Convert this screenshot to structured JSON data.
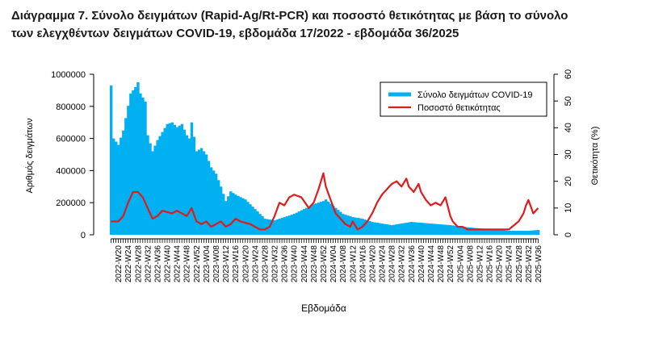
{
  "title_line1": "Διάγραμμα 7. Σύνολο δειγμάτων (Rapid-Ag/Rt-PCR) και ποσοστό θετικότητας με βάση το σύνολο",
  "title_line2": "των ελεγχθέντων δειγμάτων COVID-19, εβδομάδα 17/2022 - εβδομάδα 36/2025",
  "colors": {
    "bars": "#00b0f0",
    "line": "#e01b1b"
  },
  "chart_data": {
    "type": "bar",
    "title": "Διάγραμμα 7. Σύνολο δειγμάτων (Rapid-Ag/Rt-PCR) και ποσοστό θετικότητας με βάση το σύνολο των ελεγχθέντων δειγμάτων COVID-19, εβδομάδα 17/2022 - εβδομάδα 36/2025",
    "xlabel": "Εβδομάδα",
    "ylabel": "Αριθμός δειγμάτων",
    "y2label": "Θετικότητα (%)",
    "ylim": [
      0,
      1000000
    ],
    "y2lim": [
      0,
      60
    ],
    "yticks": [
      0,
      200000,
      400000,
      600000,
      800000,
      1000000
    ],
    "ytick_labels": [
      "0",
      "200000",
      "400000",
      "600000",
      "800000",
      "1000000"
    ],
    "y2ticks": [
      0,
      10,
      20,
      30,
      40,
      50,
      60
    ],
    "y2tick_labels": [
      "0",
      "10",
      "20",
      "30",
      "40",
      "50",
      "60"
    ],
    "xtick_labels": [
      "2022-W20",
      "2022-W24",
      "2022-W28",
      "2022-W32",
      "2022-W36",
      "2022-W40",
      "2022-W44",
      "2022-W48",
      "2022-W52",
      "2023-W04",
      "2023-W08",
      "2023-W12",
      "2023-W16",
      "2023-W20",
      "2023-W24",
      "2023-W28",
      "2023-W32",
      "2023-W36",
      "2023-W40",
      "2023-W44",
      "2023-W48",
      "2023-W52",
      "2024-W04",
      "2024-W08",
      "2024-W12",
      "2024-W16",
      "2024-W20",
      "2024-W24",
      "2024-W28",
      "2024-W32",
      "2024-W36",
      "2024-W40",
      "2024-W44",
      "2024-W48",
      "2024-W52",
      "2025-W04",
      "2025-W08",
      "2025-W12",
      "2025-W16",
      "2025-W20",
      "2025-W24",
      "2025-W28",
      "2025-W32",
      "2025-W36"
    ],
    "legend_position": "top-right",
    "grid": false,
    "series": [
      {
        "name": "Σύνολο δειγμάτων COVID-19",
        "type": "bar",
        "axis": "left",
        "anchor_weeks": [
          "2022-W17",
          "2022-W18",
          "2022-W20",
          "2022-W22",
          "2022-W25",
          "2022-W27",
          "2022-W28",
          "2022-W29",
          "2022-W31",
          "2022-W32",
          "2022-W34",
          "2022-W36",
          "2022-W38",
          "2022-W40",
          "2022-W42",
          "2022-W44",
          "2022-W46",
          "2022-W48",
          "2022-W49",
          "2022-W50",
          "2022-W52",
          "2023-W02",
          "2023-W04",
          "2023-W06",
          "2023-W08",
          "2023-W10",
          "2023-W12",
          "2023-W14",
          "2023-W16",
          "2023-W20",
          "2023-W24",
          "2023-W28",
          "2023-W32",
          "2023-W36",
          "2023-W40",
          "2023-W44",
          "2023-W48",
          "2023-W52",
          "2024-W01",
          "2024-W04",
          "2024-W08",
          "2024-W12",
          "2024-W16",
          "2024-W20",
          "2024-W28",
          "2024-W36",
          "2024-W44",
          "2024-W52",
          "2025-W08",
          "2025-W16",
          "2025-W24",
          "2025-W32",
          "2025-W36"
        ],
        "anchor_values": [
          930000,
          600000,
          560000,
          650000,
          880000,
          920000,
          950000,
          880000,
          830000,
          620000,
          520000,
          590000,
          640000,
          690000,
          700000,
          670000,
          690000,
          620000,
          600000,
          700000,
          520000,
          540000,
          500000,
          420000,
          380000,
          300000,
          210000,
          270000,
          250000,
          220000,
          160000,
          100000,
          90000,
          110000,
          130000,
          160000,
          190000,
          210000,
          220000,
          180000,
          130000,
          110000,
          100000,
          80000,
          60000,
          80000,
          70000,
          60000,
          45000,
          35000,
          25000,
          25000,
          30000
        ]
      },
      {
        "name": "Ποσοστό θετικότητας",
        "type": "line",
        "axis": "right",
        "anchor_weeks": [
          "2022-W17",
          "2022-W20",
          "2022-W22",
          "2022-W24",
          "2022-W26",
          "2022-W28",
          "2022-W30",
          "2022-W32",
          "2022-W34",
          "2022-W36",
          "2022-W38",
          "2022-W42",
          "2022-W44",
          "2022-W48",
          "2022-W50",
          "2022-W52",
          "2023-W02",
          "2023-W04",
          "2023-W06",
          "2023-W08",
          "2023-W10",
          "2023-W12",
          "2023-W14",
          "2023-W16",
          "2023-W18",
          "2023-W22",
          "2023-W26",
          "2023-W28",
          "2023-W30",
          "2023-W32",
          "2023-W34",
          "2023-W36",
          "2023-W38",
          "2023-W40",
          "2023-W43",
          "2023-W46",
          "2023-W48",
          "2023-W50",
          "2023-W52",
          "2024-W01",
          "2024-W03",
          "2024-W05",
          "2024-W07",
          "2024-W09",
          "2024-W11",
          "2024-W12",
          "2024-W14",
          "2024-W16",
          "2024-W18",
          "2024-W20",
          "2024-W22",
          "2024-W24",
          "2024-W26",
          "2024-W28",
          "2024-W30",
          "2024-W32",
          "2024-W34",
          "2024-W35",
          "2024-W37",
          "2024-W39",
          "2024-W40",
          "2024-W42",
          "2024-W44",
          "2024-W46",
          "2024-W48",
          "2024-W50",
          "2024-W52",
          "2025-W01",
          "2025-W03",
          "2025-W05",
          "2025-W07",
          "2025-W09",
          "2025-W12",
          "2025-W16",
          "2025-W20",
          "2025-W24",
          "2025-W28",
          "2025-W30",
          "2025-W31",
          "2025-W32",
          "2025-W34",
          "2025-W36"
        ],
        "anchor_values": [
          5,
          5,
          7,
          12,
          16,
          16,
          14,
          10,
          6,
          7,
          9,
          8,
          9,
          7,
          10,
          5,
          4,
          5,
          3,
          4,
          5,
          3,
          4,
          6,
          5,
          4,
          2,
          2,
          3,
          7,
          12,
          11,
          14,
          15,
          14,
          10,
          12,
          17,
          23,
          18,
          13,
          8,
          6,
          4,
          3,
          5,
          2,
          3,
          5,
          8,
          12,
          15,
          17,
          19,
          20,
          18,
          21,
          18,
          16,
          19,
          16,
          13,
          11,
          12,
          11,
          14,
          7,
          5,
          3,
          3,
          2,
          2,
          2,
          2,
          2,
          2,
          5,
          8,
          11,
          13,
          8,
          10
        ]
      }
    ]
  }
}
